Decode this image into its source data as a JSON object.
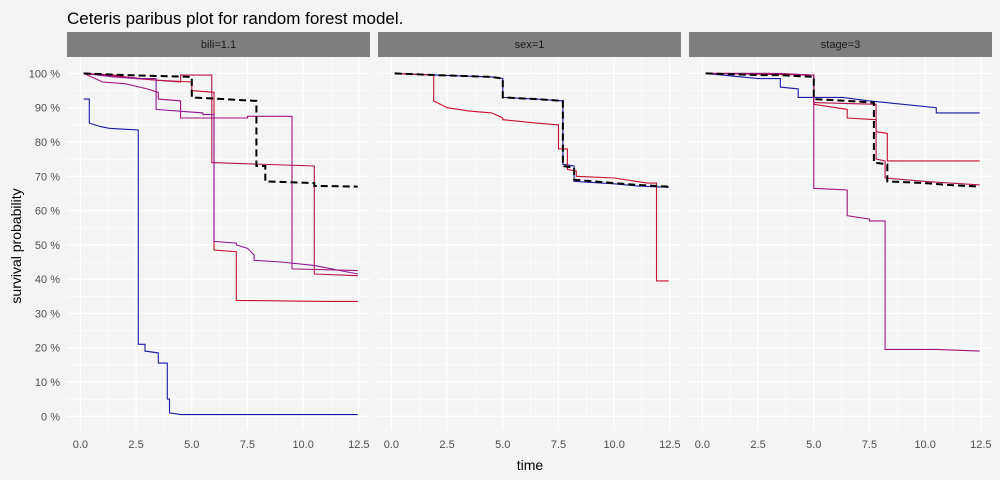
{
  "chart_data": {
    "type": "line",
    "title": "Ceteris paribus plot for random forest model.",
    "xlabel": "time",
    "ylabel": "survival probability",
    "xlim": [
      -0.6,
      13.0
    ],
    "ylim": [
      -0.04,
      1.045
    ],
    "x_ticks": [
      "0.0",
      "2.5",
      "5.0",
      "7.5",
      "10.0",
      "12.5"
    ],
    "y_ticks": [
      "0 %",
      "10 %",
      "20 %",
      "30 %",
      "40 %",
      "50 %",
      "60 %",
      "70 %",
      "80 %",
      "90 %",
      "100 %"
    ],
    "grid": true,
    "legend": "none",
    "colors": {
      "strip": "#7f7f7f",
      "panel": "#f4f4f4",
      "grid": "#ffffff",
      "reference": "#000000"
    },
    "panels": [
      {
        "label": "bili=1.1",
        "reference": [
          [
            0.15,
            1.0
          ],
          [
            2.0,
            0.995
          ],
          [
            5.0,
            0.99
          ],
          [
            5.0,
            0.93
          ],
          [
            7.9,
            0.92
          ],
          [
            7.9,
            0.73
          ],
          [
            8.3,
            0.73
          ],
          [
            8.3,
            0.685
          ],
          [
            10.5,
            0.68
          ],
          [
            10.5,
            0.672
          ],
          [
            12.45,
            0.67
          ]
        ],
        "lines": [
          {
            "color": "#1a1aa8",
            "points": [
              [
                0.15,
                0.925
              ],
              [
                0.4,
                0.925
              ],
              [
                0.4,
                0.855
              ],
              [
                0.9,
                0.845
              ],
              [
                1.3,
                0.84
              ],
              [
                2.6,
                0.835
              ],
              [
                2.6,
                0.21
              ],
              [
                2.9,
                0.21
              ],
              [
                2.9,
                0.19
              ],
              [
                3.5,
                0.185
              ],
              [
                3.5,
                0.155
              ],
              [
                3.9,
                0.155
              ],
              [
                3.9,
                0.05
              ],
              [
                4.0,
                0.05
              ],
              [
                4.0,
                0.01
              ],
              [
                4.5,
                0.005
              ],
              [
                12.45,
                0.005
              ]
            ]
          },
          {
            "color": "#c8102e",
            "points": [
              [
                0.15,
                1.0
              ],
              [
                1.5,
                0.995
              ],
              [
                2.5,
                0.985
              ],
              [
                3.5,
                0.98
              ],
              [
                5.0,
                0.975
              ],
              [
                5.0,
                0.95
              ],
              [
                6.0,
                0.945
              ],
              [
                6.0,
                0.485
              ],
              [
                7.0,
                0.48
              ],
              [
                7.0,
                0.338
              ],
              [
                11.0,
                0.335
              ],
              [
                12.45,
                0.335
              ]
            ]
          },
          {
            "color": "#b5134d",
            "points": [
              [
                0.15,
                1.0
              ],
              [
                2.0,
                0.99
              ],
              [
                3.5,
                0.98
              ],
              [
                4.5,
                0.975
              ],
              [
                4.5,
                0.995
              ],
              [
                5.9,
                0.995
              ],
              [
                5.9,
                0.74
              ],
              [
                10.5,
                0.73
              ],
              [
                10.5,
                0.415
              ],
              [
                12.45,
                0.41
              ]
            ]
          },
          {
            "color": "#a0157a",
            "points": [
              [
                0.15,
                1.0
              ],
              [
                1.0,
                0.975
              ],
              [
                2.0,
                0.97
              ],
              [
                3.0,
                0.955
              ],
              [
                3.5,
                0.945
              ],
              [
                3.5,
                0.925
              ],
              [
                4.5,
                0.92
              ],
              [
                4.5,
                0.87
              ],
              [
                7.5,
                0.87
              ],
              [
                7.5,
                0.875
              ],
              [
                9.5,
                0.875
              ],
              [
                9.5,
                0.43
              ],
              [
                12.45,
                0.425
              ]
            ]
          },
          {
            "color": "#8d1a96",
            "points": [
              [
                0.15,
                1.0
              ],
              [
                1.5,
                0.99
              ],
              [
                2.5,
                0.985
              ],
              [
                3.4,
                0.985
              ],
              [
                3.4,
                0.895
              ],
              [
                5.5,
                0.885
              ],
              [
                5.5,
                0.88
              ],
              [
                6.0,
                0.88
              ],
              [
                6.0,
                0.51
              ],
              [
                7.0,
                0.505
              ],
              [
                7.0,
                0.5
              ],
              [
                7.5,
                0.49
              ],
              [
                7.8,
                0.47
              ],
              [
                7.8,
                0.455
              ],
              [
                9.0,
                0.45
              ],
              [
                10.5,
                0.44
              ],
              [
                12.45,
                0.415
              ]
            ]
          }
        ]
      },
      {
        "label": "sex=1",
        "reference": [
          [
            0.15,
            1.0
          ],
          [
            2.0,
            0.995
          ],
          [
            4.5,
            0.99
          ],
          [
            5.0,
            0.985
          ],
          [
            5.0,
            0.93
          ],
          [
            6.5,
            0.925
          ],
          [
            7.7,
            0.92
          ],
          [
            7.7,
            0.73
          ],
          [
            8.2,
            0.725
          ],
          [
            8.2,
            0.69
          ],
          [
            10.0,
            0.68
          ],
          [
            11.0,
            0.675
          ],
          [
            12.45,
            0.67
          ]
        ],
        "lines": [
          {
            "color": "#1a1aa8",
            "points": [
              [
                0.15,
                1.0
              ],
              [
                2.0,
                0.995
              ],
              [
                4.5,
                0.99
              ],
              [
                5.0,
                0.985
              ],
              [
                5.0,
                0.93
              ],
              [
                6.5,
                0.925
              ],
              [
                7.7,
                0.92
              ],
              [
                7.7,
                0.735
              ],
              [
                8.2,
                0.73
              ],
              [
                8.2,
                0.685
              ],
              [
                10.0,
                0.678
              ],
              [
                11.0,
                0.672
              ],
              [
                12.45,
                0.668
              ]
            ]
          },
          {
            "color": "#c8102e",
            "points": [
              [
                0.15,
                1.0
              ],
              [
                1.9,
                0.995
              ],
              [
                1.9,
                0.92
              ],
              [
                2.5,
                0.9
              ],
              [
                3.5,
                0.89
              ],
              [
                4.5,
                0.885
              ],
              [
                5.0,
                0.87
              ],
              [
                5.0,
                0.865
              ],
              [
                6.5,
                0.855
              ],
              [
                7.5,
                0.85
              ],
              [
                7.5,
                0.78
              ],
              [
                7.9,
                0.78
              ],
              [
                7.9,
                0.72
              ],
              [
                8.3,
                0.715
              ],
              [
                8.3,
                0.7
              ],
              [
                10.0,
                0.695
              ],
              [
                11.5,
                0.68
              ],
              [
                11.9,
                0.68
              ],
              [
                11.9,
                0.395
              ],
              [
                12.45,
                0.395
              ]
            ]
          }
        ]
      },
      {
        "label": "stage=3",
        "reference": [
          [
            0.15,
            1.0
          ],
          [
            2.5,
            0.995
          ],
          [
            3.5,
            0.995
          ],
          [
            5.0,
            0.99
          ],
          [
            5.0,
            0.925
          ],
          [
            6.5,
            0.92
          ],
          [
            7.7,
            0.915
          ],
          [
            7.7,
            0.74
          ],
          [
            8.3,
            0.735
          ],
          [
            8.3,
            0.685
          ],
          [
            10.0,
            0.68
          ],
          [
            11.0,
            0.675
          ],
          [
            12.45,
            0.67
          ]
        ],
        "lines": [
          {
            "color": "#1a1aa8",
            "points": [
              [
                0.15,
                1.0
              ],
              [
                2.5,
                0.985
              ],
              [
                3.5,
                0.985
              ],
              [
                3.5,
                0.96
              ],
              [
                4.3,
                0.955
              ],
              [
                4.3,
                0.93
              ],
              [
                5.5,
                0.93
              ],
              [
                6.3,
                0.93
              ],
              [
                7.5,
                0.92
              ],
              [
                9.0,
                0.91
              ],
              [
                10.5,
                0.9
              ],
              [
                10.5,
                0.885
              ],
              [
                12.45,
                0.885
              ]
            ]
          },
          {
            "color": "#c8102e",
            "points": [
              [
                0.15,
                1.0
              ],
              [
                3.0,
                1.0
              ],
              [
                5.0,
                0.995
              ],
              [
                5.0,
                0.91
              ],
              [
                6.5,
                0.895
              ],
              [
                6.5,
                0.87
              ],
              [
                7.8,
                0.865
              ],
              [
                7.8,
                0.83
              ],
              [
                8.3,
                0.825
              ],
              [
                8.3,
                0.745
              ],
              [
                12.45,
                0.745
              ]
            ]
          },
          {
            "color": "#b5134d",
            "points": [
              [
                0.15,
                1.0
              ],
              [
                5.0,
                0.995
              ],
              [
                5.0,
                0.915
              ],
              [
                7.8,
                0.91
              ],
              [
                7.8,
                0.75
              ],
              [
                8.2,
                0.745
              ],
              [
                8.2,
                0.695
              ],
              [
                10.0,
                0.685
              ],
              [
                12.45,
                0.675
              ]
            ]
          },
          {
            "color": "#a0157a",
            "points": [
              [
                0.15,
                1.0
              ],
              [
                3.5,
                1.0
              ],
              [
                5.0,
                0.995
              ],
              [
                5.0,
                0.665
              ],
              [
                6.5,
                0.66
              ],
              [
                6.5,
                0.585
              ],
              [
                7.5,
                0.575
              ],
              [
                7.5,
                0.57
              ],
              [
                8.2,
                0.57
              ],
              [
                8.2,
                0.195
              ],
              [
                10.5,
                0.195
              ],
              [
                12.45,
                0.19
              ]
            ]
          }
        ]
      }
    ]
  }
}
